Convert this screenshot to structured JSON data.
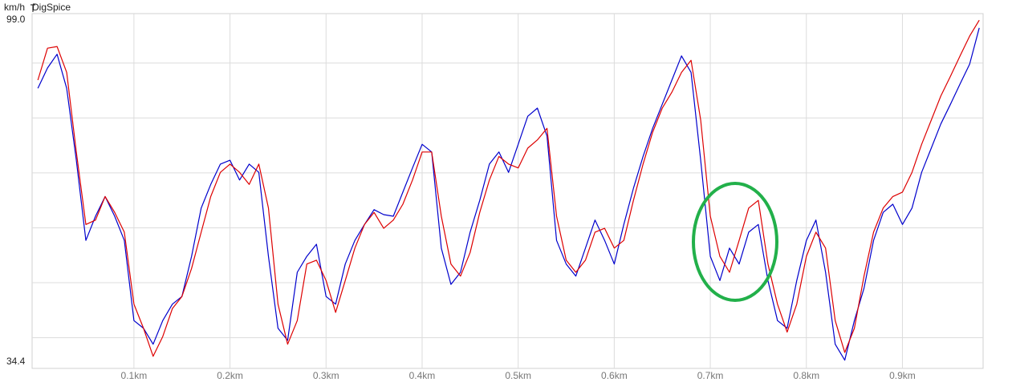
{
  "chart_data": {
    "type": "line",
    "title": "DigSpice",
    "unit_label": "km/h",
    "xlim": [
      -0.006,
      0.984
    ],
    "ylim": [
      34.4,
      99.0
    ],
    "yticks": [
      {
        "value": 99.0,
        "label": "99.0"
      },
      {
        "value": 34.4,
        "label": "34.4"
      }
    ],
    "ygrid": [
      40,
      50,
      60,
      70,
      80,
      90
    ],
    "xticks": [
      {
        "value": 0.1,
        "label": "0.1km"
      },
      {
        "value": 0.2,
        "label": "0.2km"
      },
      {
        "value": 0.3,
        "label": "0.3km"
      },
      {
        "value": 0.4,
        "label": "0.4km"
      },
      {
        "value": 0.5,
        "label": "0.5km"
      },
      {
        "value": 0.6,
        "label": "0.6km"
      },
      {
        "value": 0.7,
        "label": "0.7km"
      },
      {
        "value": 0.8,
        "label": "0.8km"
      },
      {
        "value": 0.9,
        "label": "0.9km"
      }
    ],
    "grid": true,
    "x": [
      0,
      0.01,
      0.02,
      0.03,
      0.04,
      0.05,
      0.06,
      0.07,
      0.08,
      0.09,
      0.1,
      0.11,
      0.12,
      0.13,
      0.14,
      0.15,
      0.16,
      0.17,
      0.18,
      0.19,
      0.2,
      0.21,
      0.22,
      0.23,
      0.24,
      0.25,
      0.26,
      0.27,
      0.28,
      0.29,
      0.3,
      0.31,
      0.32,
      0.33,
      0.34,
      0.35,
      0.36,
      0.37,
      0.38,
      0.39,
      0.4,
      0.41,
      0.42,
      0.43,
      0.44,
      0.45,
      0.46,
      0.47,
      0.48,
      0.49,
      0.5,
      0.51,
      0.52,
      0.53,
      0.54,
      0.55,
      0.56,
      0.57,
      0.58,
      0.59,
      0.6,
      0.61,
      0.62,
      0.63,
      0.64,
      0.65,
      0.66,
      0.67,
      0.68,
      0.69,
      0.7,
      0.71,
      0.72,
      0.73,
      0.74,
      0.75,
      0.76,
      0.77,
      0.78,
      0.79,
      0.8,
      0.81,
      0.82,
      0.83,
      0.84,
      0.85,
      0.86,
      0.87,
      0.88,
      0.89,
      0.9,
      0.91,
      0.92,
      0.93,
      0.94,
      0.95,
      0.96,
      0.97,
      0.98
    ],
    "series": [
      {
        "color": "#0000cc",
        "values": [
          85.4,
          89.1,
          91.6,
          85.4,
          72.3,
          57.7,
          62.1,
          65.7,
          62.1,
          57.7,
          43.1,
          41.7,
          38.8,
          43.1,
          46.1,
          47.5,
          54.8,
          63.6,
          67.9,
          71.6,
          72.3,
          68.7,
          71.6,
          70.1,
          54.8,
          41.7,
          39.5,
          51.9,
          54.8,
          57.0,
          47.5,
          46.1,
          53.4,
          57.7,
          60.6,
          63.3,
          62.4,
          62.1,
          66.5,
          70.9,
          75.2,
          73.8,
          56.3,
          49.7,
          51.9,
          59.2,
          65.0,
          71.6,
          73.8,
          70.1,
          75.2,
          80.3,
          81.8,
          76.7,
          57.7,
          53.4,
          51.2,
          56.3,
          61.4,
          57.7,
          53.4,
          60.6,
          67.2,
          73.0,
          78.1,
          82.5,
          86.9,
          91.3,
          88.3,
          72.3,
          54.8,
          50.4,
          56.3,
          53.4,
          59.2,
          60.6,
          50.4,
          43.1,
          41.7,
          50.4,
          57.7,
          61.4,
          51.9,
          38.8,
          35.9,
          43.1,
          49.0,
          57.7,
          62.8,
          64.3,
          60.6,
          63.6,
          70.1,
          74.5,
          78.9,
          82.5,
          86.2,
          89.8,
          96.4
        ]
      },
      {
        "color": "#dd0000",
        "values": [
          86.9,
          92.7,
          93.0,
          88.3,
          73.8,
          60.6,
          61.4,
          65.7,
          62.8,
          59.2,
          46.1,
          41.7,
          36.6,
          40.2,
          45.3,
          47.5,
          52.6,
          59.2,
          65.7,
          70.1,
          71.6,
          70.1,
          67.9,
          71.6,
          63.6,
          46.1,
          38.8,
          43.1,
          53.4,
          54.1,
          50.4,
          44.6,
          50.4,
          56.3,
          60.6,
          62.8,
          59.9,
          61.4,
          64.3,
          68.7,
          73.8,
          73.8,
          62.1,
          53.4,
          51.2,
          55.5,
          62.8,
          68.7,
          73.0,
          71.6,
          70.9,
          74.5,
          76.0,
          78.1,
          62.1,
          54.1,
          51.9,
          54.1,
          59.2,
          59.9,
          56.3,
          57.7,
          65.0,
          71.6,
          77.4,
          81.8,
          84.7,
          88.3,
          90.5,
          79.6,
          62.1,
          54.8,
          51.9,
          57.7,
          63.6,
          65.0,
          53.4,
          46.1,
          41.0,
          46.1,
          54.8,
          59.2,
          56.3,
          43.1,
          37.3,
          41.7,
          51.2,
          59.2,
          63.6,
          65.7,
          66.5,
          70.1,
          75.2,
          79.6,
          84.0,
          87.6,
          91.3,
          94.9,
          97.8
        ]
      }
    ]
  }
}
